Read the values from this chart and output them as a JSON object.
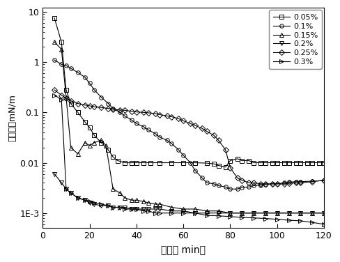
{
  "title": "",
  "xlabel": "时间（ min）",
  "ylabel": "界面张力mN/m",
  "xlim": [
    0,
    120
  ],
  "ylim_log": [
    0.0005,
    12
  ],
  "series": {
    "0.05%": {
      "x": [
        5,
        8,
        10,
        12,
        15,
        18,
        20,
        22,
        25,
        28,
        30,
        32,
        35,
        38,
        40,
        43,
        46,
        50,
        55,
        60,
        65,
        70,
        73,
        75,
        78,
        80,
        83,
        85,
        88,
        90,
        93,
        95,
        98,
        100,
        103,
        105,
        108,
        110,
        113,
        115,
        118,
        120
      ],
      "y": [
        7.5,
        2.5,
        0.28,
        0.15,
        0.1,
        0.065,
        0.05,
        0.035,
        0.025,
        0.018,
        0.013,
        0.011,
        0.01,
        0.01,
        0.01,
        0.01,
        0.01,
        0.01,
        0.01,
        0.01,
        0.01,
        0.0098,
        0.0095,
        0.0088,
        0.0082,
        0.011,
        0.012,
        0.011,
        0.011,
        0.01,
        0.01,
        0.01,
        0.01,
        0.01,
        0.01,
        0.01,
        0.01,
        0.01,
        0.01,
        0.01,
        0.01,
        0.01
      ]
    },
    "0.1%": {
      "x": [
        5,
        8,
        10,
        12,
        15,
        18,
        20,
        22,
        25,
        28,
        30,
        33,
        35,
        38,
        40,
        43,
        45,
        48,
        50,
        53,
        55,
        58,
        60,
        63,
        65,
        68,
        70,
        73,
        75,
        78,
        80,
        83,
        85,
        88,
        90,
        93,
        95,
        98,
        100,
        103,
        105,
        108,
        110,
        115,
        120
      ],
      "y": [
        1.1,
        0.9,
        0.85,
        0.75,
        0.62,
        0.5,
        0.38,
        0.28,
        0.2,
        0.15,
        0.12,
        0.1,
        0.085,
        0.07,
        0.06,
        0.052,
        0.045,
        0.038,
        0.032,
        0.028,
        0.024,
        0.018,
        0.014,
        0.01,
        0.007,
        0.005,
        0.004,
        0.0038,
        0.0035,
        0.0033,
        0.003,
        0.003,
        0.0032,
        0.0033,
        0.0035,
        0.0036,
        0.0037,
        0.0038,
        0.0038,
        0.004,
        0.0041,
        0.0042,
        0.0042,
        0.0043,
        0.0044
      ]
    },
    "0.15%": {
      "x": [
        5,
        8,
        10,
        12,
        15,
        18,
        20,
        22,
        25,
        27,
        30,
        33,
        35,
        38,
        40,
        43,
        45,
        48,
        50,
        55,
        60,
        65,
        70,
        75,
        80,
        85,
        90,
        95,
        100,
        105,
        110,
        115,
        120
      ],
      "y": [
        2.5,
        1.8,
        0.2,
        0.02,
        0.015,
        0.025,
        0.022,
        0.025,
        0.028,
        0.022,
        0.003,
        0.0025,
        0.002,
        0.0018,
        0.0018,
        0.0017,
        0.0016,
        0.0015,
        0.0015,
        0.0013,
        0.0012,
        0.0012,
        0.0011,
        0.0011,
        0.001,
        0.001,
        0.001,
        0.001,
        0.001,
        0.001,
        0.001,
        0.001,
        0.001
      ]
    },
    "0.2%": {
      "x": [
        5,
        8,
        10,
        12,
        15,
        18,
        20,
        22,
        25,
        28,
        30,
        33,
        35,
        38,
        40,
        43,
        45,
        48,
        50,
        55,
        60,
        65,
        70,
        75,
        80,
        85,
        90,
        95,
        100,
        105,
        110,
        115,
        120
      ],
      "y": [
        0.006,
        0.004,
        0.003,
        0.0025,
        0.002,
        0.0018,
        0.0016,
        0.0015,
        0.0014,
        0.0014,
        0.0013,
        0.0013,
        0.0013,
        0.0012,
        0.0012,
        0.0012,
        0.0012,
        0.0012,
        0.0012,
        0.0011,
        0.0011,
        0.001,
        0.001,
        0.001,
        0.001,
        0.001,
        0.001,
        0.001,
        0.001,
        0.001,
        0.001,
        0.001,
        0.001
      ]
    },
    "0.25%": {
      "x": [
        5,
        8,
        10,
        12,
        15,
        18,
        20,
        22,
        25,
        28,
        30,
        33,
        35,
        38,
        40,
        43,
        45,
        48,
        50,
        53,
        55,
        58,
        60,
        63,
        65,
        68,
        70,
        73,
        75,
        78,
        80,
        83,
        85,
        88,
        90,
        93,
        95,
        98,
        100,
        103,
        105,
        108,
        110,
        115,
        120
      ],
      "y": [
        0.28,
        0.22,
        0.19,
        0.17,
        0.15,
        0.14,
        0.135,
        0.13,
        0.125,
        0.12,
        0.115,
        0.112,
        0.11,
        0.105,
        0.102,
        0.1,
        0.098,
        0.095,
        0.09,
        0.085,
        0.082,
        0.075,
        0.068,
        0.06,
        0.055,
        0.048,
        0.042,
        0.035,
        0.028,
        0.018,
        0.008,
        0.005,
        0.0045,
        0.004,
        0.004,
        0.0038,
        0.0038,
        0.0038,
        0.0038,
        0.0038,
        0.0039,
        0.004,
        0.004,
        0.0042,
        0.0045
      ]
    },
    "0.3%": {
      "x": [
        5,
        8,
        10,
        12,
        15,
        18,
        20,
        22,
        25,
        28,
        30,
        33,
        35,
        38,
        40,
        43,
        45,
        48,
        50,
        55,
        60,
        65,
        70,
        75,
        80,
        85,
        90,
        95,
        100,
        105,
        110,
        115,
        120
      ],
      "y": [
        0.22,
        0.18,
        0.003,
        0.0025,
        0.002,
        0.0018,
        0.0017,
        0.0016,
        0.0015,
        0.0014,
        0.0013,
        0.0013,
        0.0012,
        0.0012,
        0.0012,
        0.0011,
        0.0011,
        0.001,
        0.001,
        0.001,
        0.001,
        0.001,
        0.0009,
        0.00088,
        0.00085,
        0.00082,
        0.0008,
        0.00078,
        0.00075,
        0.00072,
        0.0007,
        0.00065,
        0.0006
      ]
    }
  },
  "legend_labels": [
    "0.05%",
    "0.1%",
    "0.15%",
    "0.2%",
    "0.25%",
    "0.3%"
  ],
  "bg_color": "#ffffff",
  "line_color": "#000000",
  "markersize": 4,
  "linewidth": 0.8
}
